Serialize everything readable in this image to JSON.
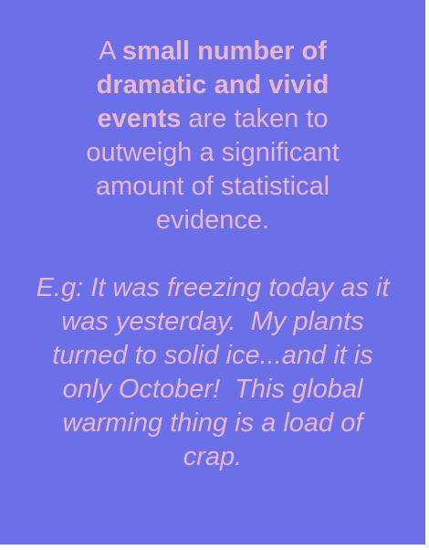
{
  "card": {
    "background": "#6b6fe8",
    "text_color": "#eab6cf"
  },
  "definition": {
    "prefix": "A ",
    "emphasis": "small number of dramatic and vivid events",
    "suffix": " are taken to outweigh a significant amount of statistical evidence."
  },
  "example": {
    "text": "E.g: It was freezing today as it was yesterday.  My plants turned to solid ice...and it is only October!  This global warming thing is a load of crap."
  }
}
